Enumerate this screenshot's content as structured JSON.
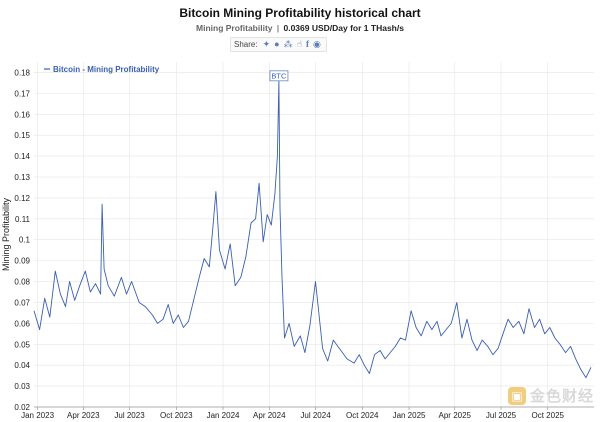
{
  "header": {
    "title": "Bitcoin Mining Profitability historical chart",
    "subtitle_key": "Mining Profitability",
    "subtitle_sep": "|",
    "subtitle_value": "0.0369 USD/Day for 1 THash/s"
  },
  "share": {
    "label": "Share:",
    "icons": [
      "twitter-icon",
      "reddit-icon",
      "vk-icon",
      "like-icon",
      "facebook-icon",
      "weibo-icon"
    ]
  },
  "watermark": {
    "text": "金色财经"
  },
  "colors": {
    "line": "#3a5fb0",
    "grid": "#e6e6e6",
    "axis": "#333333",
    "annotation_border": "#6a87c4"
  },
  "chart_data": {
    "type": "line",
    "title": "Bitcoin Mining Profitability historical chart",
    "ylabel": "Mining Profitability",
    "xlabel": "",
    "legend": {
      "position": "top-left",
      "entries": [
        "Bitcoin - Mining Profitability"
      ]
    },
    "grid": true,
    "xlim": [
      "2022-12-25",
      "2025-12-31"
    ],
    "ylim": [
      0.02,
      0.185
    ],
    "yticks": [
      0.02,
      0.03,
      0.04,
      0.05,
      0.06,
      0.07,
      0.08,
      0.09,
      0.1,
      0.11,
      0.12,
      0.13,
      0.14,
      0.15,
      0.16,
      0.17,
      0.18
    ],
    "ytick_labels": [
      "0.02",
      "0.03",
      "0.04",
      "0.05",
      "0.06",
      "0.07",
      "0.08",
      "0.09",
      "0.1",
      "0.11",
      "0.12",
      "0.13",
      "0.14",
      "0.15",
      "0.16",
      "0.17",
      "0.18"
    ],
    "xticks": [
      {
        "date": "2023-01-01",
        "label": "Jan 2023"
      },
      {
        "date": "2023-04-01",
        "label": "Apr 2023"
      },
      {
        "date": "2023-07-01",
        "label": "Jul 2023"
      },
      {
        "date": "2023-10-01",
        "label": "Oct 2023"
      },
      {
        "date": "2024-01-01",
        "label": "Jan 2024"
      },
      {
        "date": "2024-04-01",
        "label": "Apr 2024"
      },
      {
        "date": "2024-07-01",
        "label": "Jul 2024"
      },
      {
        "date": "2024-10-01",
        "label": "Oct 2024"
      },
      {
        "date": "2025-01-01",
        "label": "Jan 2025"
      },
      {
        "date": "2025-04-01",
        "label": "Apr 2025"
      },
      {
        "date": "2025-07-01",
        "label": "Jul 2025"
      },
      {
        "date": "2025-10-01",
        "label": "Oct 2025"
      }
    ],
    "annotations": [
      {
        "date": "2024-04-20",
        "value": 0.176,
        "label": "BTC"
      }
    ],
    "series": [
      {
        "name": "Bitcoin - Mining Profitability",
        "x": [
          "2022-12-25",
          "2023-01-05",
          "2023-01-15",
          "2023-01-25",
          "2023-02-05",
          "2023-02-15",
          "2023-02-25",
          "2023-03-05",
          "2023-03-15",
          "2023-03-25",
          "2023-04-05",
          "2023-04-15",
          "2023-04-25",
          "2023-05-05",
          "2023-05-08",
          "2023-05-12",
          "2023-05-20",
          "2023-06-01",
          "2023-06-15",
          "2023-06-25",
          "2023-07-05",
          "2023-07-20",
          "2023-08-01",
          "2023-08-15",
          "2023-08-25",
          "2023-09-05",
          "2023-09-15",
          "2023-09-25",
          "2023-10-05",
          "2023-10-15",
          "2023-10-25",
          "2023-11-05",
          "2023-11-15",
          "2023-11-25",
          "2023-12-05",
          "2023-12-12",
          "2023-12-18",
          "2023-12-25",
          "2024-01-05",
          "2024-01-15",
          "2024-01-25",
          "2024-02-05",
          "2024-02-15",
          "2024-02-25",
          "2024-03-05",
          "2024-03-12",
          "2024-03-20",
          "2024-03-28",
          "2024-04-05",
          "2024-04-12",
          "2024-04-17",
          "2024-04-20",
          "2024-04-22",
          "2024-04-26",
          "2024-05-01",
          "2024-05-10",
          "2024-05-20",
          "2024-06-01",
          "2024-06-10",
          "2024-06-20",
          "2024-07-01",
          "2024-07-15",
          "2024-07-25",
          "2024-08-05",
          "2024-08-20",
          "2024-09-01",
          "2024-09-15",
          "2024-09-25",
          "2024-10-05",
          "2024-10-15",
          "2024-10-25",
          "2024-11-05",
          "2024-11-15",
          "2024-11-25",
          "2024-12-05",
          "2024-12-15",
          "2024-12-25",
          "2025-01-05",
          "2025-01-15",
          "2025-01-25",
          "2025-02-05",
          "2025-02-15",
          "2025-02-25",
          "2025-03-05",
          "2025-03-15",
          "2025-03-25",
          "2025-04-05",
          "2025-04-15",
          "2025-04-25",
          "2025-05-05",
          "2025-05-15",
          "2025-05-25",
          "2025-06-05",
          "2025-06-15",
          "2025-06-25",
          "2025-07-05",
          "2025-07-15",
          "2025-07-25",
          "2025-08-05",
          "2025-08-15",
          "2025-08-25",
          "2025-09-05",
          "2025-09-15",
          "2025-09-25",
          "2025-10-05",
          "2025-10-15",
          "2025-10-25",
          "2025-11-05",
          "2025-11-15",
          "2025-11-25",
          "2025-12-05",
          "2025-12-15",
          "2025-12-25"
        ],
        "values": [
          0.066,
          0.057,
          0.072,
          0.063,
          0.085,
          0.074,
          0.068,
          0.08,
          0.071,
          0.078,
          0.085,
          0.075,
          0.079,
          0.074,
          0.117,
          0.086,
          0.078,
          0.073,
          0.082,
          0.074,
          0.08,
          0.07,
          0.068,
          0.064,
          0.06,
          0.062,
          0.069,
          0.06,
          0.064,
          0.058,
          0.061,
          0.072,
          0.082,
          0.091,
          0.087,
          0.106,
          0.123,
          0.095,
          0.086,
          0.098,
          0.078,
          0.082,
          0.092,
          0.108,
          0.11,
          0.127,
          0.099,
          0.112,
          0.107,
          0.122,
          0.14,
          0.176,
          0.115,
          0.082,
          0.053,
          0.06,
          0.049,
          0.054,
          0.046,
          0.059,
          0.08,
          0.048,
          0.042,
          0.052,
          0.047,
          0.043,
          0.041,
          0.045,
          0.04,
          0.036,
          0.045,
          0.047,
          0.043,
          0.046,
          0.049,
          0.053,
          0.052,
          0.066,
          0.058,
          0.054,
          0.061,
          0.057,
          0.061,
          0.054,
          0.057,
          0.06,
          0.07,
          0.053,
          0.062,
          0.052,
          0.047,
          0.052,
          0.049,
          0.045,
          0.048,
          0.055,
          0.062,
          0.058,
          0.061,
          0.055,
          0.067,
          0.058,
          0.062,
          0.055,
          0.058,
          0.053,
          0.05,
          0.046,
          0.049,
          0.043,
          0.038,
          0.034,
          0.039
        ]
      }
    ]
  }
}
